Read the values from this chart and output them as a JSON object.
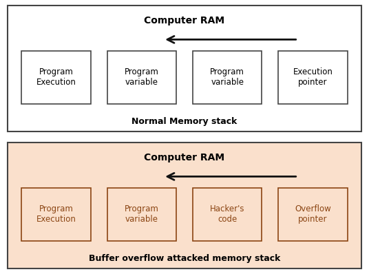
{
  "panel1": {
    "title": "Computer RAM",
    "subtitle": "Normal Memory stack",
    "bg_color": "#ffffff",
    "border_color": "#444444",
    "title_color": "#000000",
    "subtitle_color": "#000000",
    "arrow_color": "#111111",
    "boxes": [
      {
        "label": "Program\nExecution",
        "text_color": "#000000"
      },
      {
        "label": "Program\nvariable",
        "text_color": "#000000"
      },
      {
        "label": "Program\nvariable",
        "text_color": "#000000"
      },
      {
        "label": "Execution\npointer",
        "text_color": "#000000"
      }
    ],
    "box_bg": "#ffffff",
    "box_border": "#444444"
  },
  "panel2": {
    "title": "Computer RAM",
    "subtitle": "Buffer overflow attacked memory stack",
    "bg_color": "#fae0cc",
    "border_color": "#444444",
    "title_color": "#000000",
    "subtitle_color": "#000000",
    "arrow_color": "#111111",
    "boxes": [
      {
        "label": "Program\nExecution",
        "text_color": "#8B4513"
      },
      {
        "label": "Program\nvariable",
        "text_color": "#8B4513"
      },
      {
        "label": "Hacker's\ncode",
        "text_color": "#8B4513"
      },
      {
        "label": "Overflow\npointer",
        "text_color": "#8B4513"
      }
    ],
    "box_bg": "#fae0cc",
    "box_border": "#8B4513"
  },
  "fig_width": 5.36,
  "fig_height": 3.98,
  "dpi": 100
}
